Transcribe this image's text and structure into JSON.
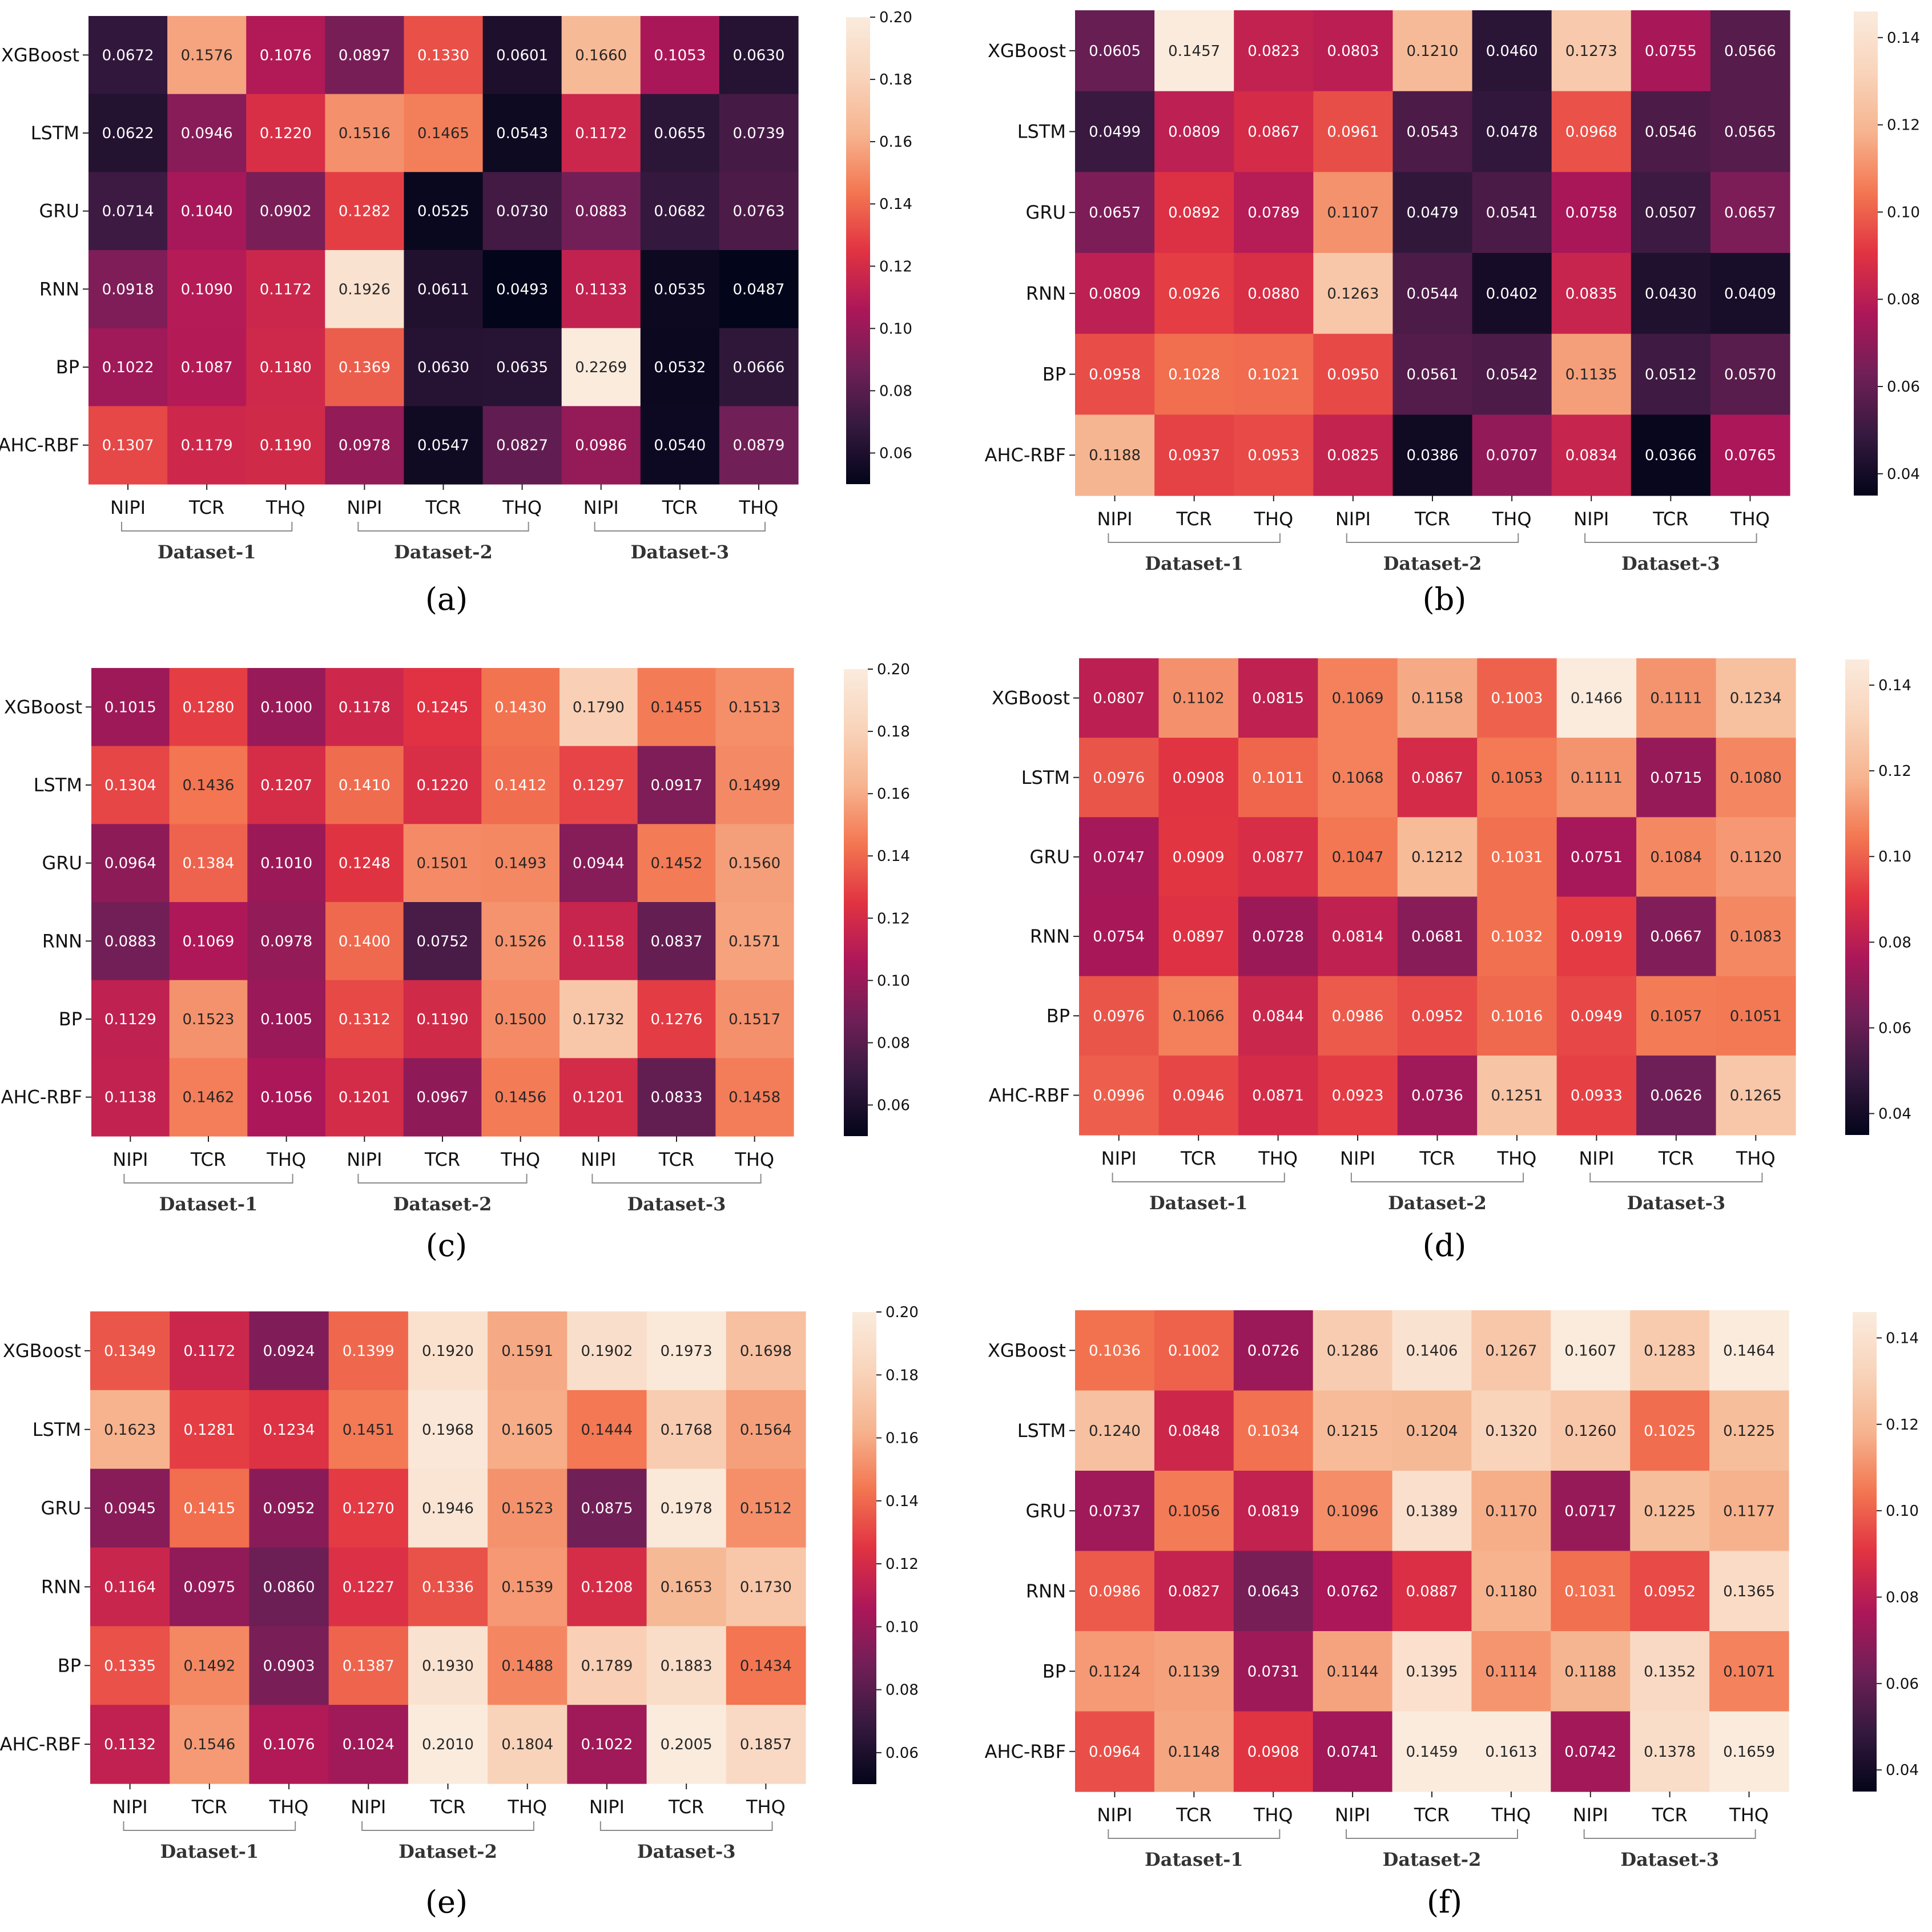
{
  "chart_data": [
    {
      "type": "heatmap",
      "panel_label": "(a)",
      "rows": [
        "XGBoost",
        "LSTM",
        "GRU",
        "RNN",
        "BP",
        "AHC-RBF"
      ],
      "columns": [
        "NIPI",
        "TCR",
        "THQ",
        "NIPI",
        "TCR",
        "THQ",
        "NIPI",
        "TCR",
        "THQ"
      ],
      "groups": [
        "Dataset-1",
        "Dataset-2",
        "Dataset-3"
      ],
      "values": [
        [
          "0.0672",
          "0.1576",
          "0.1076",
          "0.0897",
          "0.1330",
          "0.0601",
          "0.1660",
          "0.1053",
          "0.0630"
        ],
        [
          "0.0622",
          "0.0946",
          "0.1220",
          "0.1516",
          "0.1465",
          "0.0543",
          "0.1172",
          "0.0655",
          "0.0739"
        ],
        [
          "0.0714",
          "0.1040",
          "0.0902",
          "0.1282",
          "0.0525",
          "0.0730",
          "0.0883",
          "0.0682",
          "0.0763"
        ],
        [
          "0.0918",
          "0.1090",
          "0.1172",
          "0.1926",
          "0.0611",
          "0.0493",
          "0.1133",
          "0.0535",
          "0.0487"
        ],
        [
          "0.1022",
          "0.1087",
          "0.1180",
          "0.1369",
          "0.0630",
          "0.0635",
          "0.2269",
          "0.0532",
          "0.0666"
        ],
        [
          "0.1307",
          "0.1179",
          "0.1190",
          "0.0978",
          "0.0547",
          "0.0827",
          "0.0986",
          "0.0540",
          "0.0879"
        ]
      ],
      "colorbar": {
        "min": 0.05,
        "max": 0.2,
        "ticks": [
          "0.06",
          "0.08",
          "0.10",
          "0.12",
          "0.14",
          "0.16",
          "0.18",
          "0.20"
        ]
      }
    },
    {
      "type": "heatmap",
      "panel_label": "(b)",
      "rows": [
        "XGBoost",
        "LSTM",
        "GRU",
        "RNN",
        "BP",
        "AHC-RBF"
      ],
      "columns": [
        "NIPI",
        "TCR",
        "THQ",
        "NIPI",
        "TCR",
        "THQ",
        "NIPI",
        "TCR",
        "THQ"
      ],
      "groups": [
        "Dataset-1",
        "Dataset-2",
        "Dataset-3"
      ],
      "values": [
        [
          "0.0605",
          "0.1457",
          "0.0823",
          "0.0803",
          "0.1210",
          "0.0460",
          "0.1273",
          "0.0755",
          "0.0566"
        ],
        [
          "0.0499",
          "0.0809",
          "0.0867",
          "0.0961",
          "0.0543",
          "0.0478",
          "0.0968",
          "0.0546",
          "0.0565"
        ],
        [
          "0.0657",
          "0.0892",
          "0.0789",
          "0.1107",
          "0.0479",
          "0.0541",
          "0.0758",
          "0.0507",
          "0.0657"
        ],
        [
          "0.0809",
          "0.0926",
          "0.0880",
          "0.1263",
          "0.0544",
          "0.0402",
          "0.0835",
          "0.0430",
          "0.0409"
        ],
        [
          "0.0958",
          "0.1028",
          "0.1021",
          "0.0950",
          "0.0561",
          "0.0542",
          "0.1135",
          "0.0512",
          "0.0570"
        ],
        [
          "0.1188",
          "0.0937",
          "0.0953",
          "0.0825",
          "0.0386",
          "0.0707",
          "0.0834",
          "0.0366",
          "0.0765"
        ]
      ],
      "colorbar": {
        "min": 0.035,
        "max": 0.146,
        "ticks": [
          "0.04",
          "0.06",
          "0.08",
          "0.10",
          "0.12",
          "0.14"
        ]
      }
    },
    {
      "type": "heatmap",
      "panel_label": "(c)",
      "rows": [
        "XGBoost",
        "LSTM",
        "GRU",
        "RNN",
        "BP",
        "AHC-RBF"
      ],
      "columns": [
        "NIPI",
        "TCR",
        "THQ",
        "NIPI",
        "TCR",
        "THQ",
        "NIPI",
        "TCR",
        "THQ"
      ],
      "groups": [
        "Dataset-1",
        "Dataset-2",
        "Dataset-3"
      ],
      "values": [
        [
          "0.1015",
          "0.1280",
          "0.1000",
          "0.1178",
          "0.1245",
          "0.1430",
          "0.1790",
          "0.1455",
          "0.1513"
        ],
        [
          "0.1304",
          "0.1436",
          "0.1207",
          "0.1410",
          "0.1220",
          "0.1412",
          "0.1297",
          "0.0917",
          "0.1499"
        ],
        [
          "0.0964",
          "0.1384",
          "0.1010",
          "0.1248",
          "0.1501",
          "0.1493",
          "0.0944",
          "0.1452",
          "0.1560"
        ],
        [
          "0.0883",
          "0.1069",
          "0.0978",
          "0.1400",
          "0.0752",
          "0.1526",
          "0.1158",
          "0.0837",
          "0.1571"
        ],
        [
          "0.1129",
          "0.1523",
          "0.1005",
          "0.1312",
          "0.1190",
          "0.1500",
          "0.1732",
          "0.1276",
          "0.1517"
        ],
        [
          "0.1138",
          "0.1462",
          "0.1056",
          "0.1201",
          "0.0967",
          "0.1456",
          "0.1201",
          "0.0833",
          "0.1458"
        ]
      ],
      "colorbar": {
        "min": 0.05,
        "max": 0.2,
        "ticks": [
          "0.06",
          "0.08",
          "0.10",
          "0.12",
          "0.14",
          "0.16",
          "0.18",
          "0.20"
        ]
      }
    },
    {
      "type": "heatmap",
      "panel_label": "(d)",
      "rows": [
        "XGBoost",
        "LSTM",
        "GRU",
        "RNN",
        "BP",
        "AHC-RBF"
      ],
      "columns": [
        "NIPI",
        "TCR",
        "THQ",
        "NIPI",
        "TCR",
        "THQ",
        "NIPI",
        "TCR",
        "THQ"
      ],
      "groups": [
        "Dataset-1",
        "Dataset-2",
        "Dataset-3"
      ],
      "values": [
        [
          "0.0807",
          "0.1102",
          "0.0815",
          "0.1069",
          "0.1158",
          "0.1003",
          "0.1466",
          "0.1111",
          "0.1234"
        ],
        [
          "0.0976",
          "0.0908",
          "0.1011",
          "0.1068",
          "0.0867",
          "0.1053",
          "0.1111",
          "0.0715",
          "0.1080"
        ],
        [
          "0.0747",
          "0.0909",
          "0.0877",
          "0.1047",
          "0.1212",
          "0.1031",
          "0.0751",
          "0.1084",
          "0.1120"
        ],
        [
          "0.0754",
          "0.0897",
          "0.0728",
          "0.0814",
          "0.0681",
          "0.1032",
          "0.0919",
          "0.0667",
          "0.1083"
        ],
        [
          "0.0976",
          "0.1066",
          "0.0844",
          "0.0986",
          "0.0952",
          "0.1016",
          "0.0949",
          "0.1057",
          "0.1051"
        ],
        [
          "0.0996",
          "0.0946",
          "0.0871",
          "0.0923",
          "0.0736",
          "0.1251",
          "0.0933",
          "0.0626",
          "0.1265"
        ]
      ],
      "colorbar": {
        "min": 0.035,
        "max": 0.146,
        "ticks": [
          "0.04",
          "0.06",
          "0.08",
          "0.10",
          "0.12",
          "0.14"
        ]
      }
    },
    {
      "type": "heatmap",
      "panel_label": "(e)",
      "rows": [
        "XGBoost",
        "LSTM",
        "GRU",
        "RNN",
        "BP",
        "AHC-RBF"
      ],
      "columns": [
        "NIPI",
        "TCR",
        "THQ",
        "NIPI",
        "TCR",
        "THQ",
        "NIPI",
        "TCR",
        "THQ"
      ],
      "groups": [
        "Dataset-1",
        "Dataset-2",
        "Dataset-3"
      ],
      "values": [
        [
          "0.1349",
          "0.1172",
          "0.0924",
          "0.1399",
          "0.1920",
          "0.1591",
          "0.1902",
          "0.1973",
          "0.1698"
        ],
        [
          "0.1623",
          "0.1281",
          "0.1234",
          "0.1451",
          "0.1968",
          "0.1605",
          "0.1444",
          "0.1768",
          "0.1564"
        ],
        [
          "0.0945",
          "0.1415",
          "0.0952",
          "0.1270",
          "0.1946",
          "0.1523",
          "0.0875",
          "0.1978",
          "0.1512"
        ],
        [
          "0.1164",
          "0.0975",
          "0.0860",
          "0.1227",
          "0.1336",
          "0.1539",
          "0.1208",
          "0.1653",
          "0.1730"
        ],
        [
          "0.1335",
          "0.1492",
          "0.0903",
          "0.1387",
          "0.1930",
          "0.1488",
          "0.1789",
          "0.1883",
          "0.1434"
        ],
        [
          "0.1132",
          "0.1546",
          "0.1076",
          "0.1024",
          "0.2010",
          "0.1804",
          "0.1022",
          "0.2005",
          "0.1857"
        ]
      ],
      "colorbar": {
        "min": 0.05,
        "max": 0.2,
        "ticks": [
          "0.06",
          "0.08",
          "0.10",
          "0.12",
          "0.14",
          "0.16",
          "0.18",
          "0.20"
        ]
      }
    },
    {
      "type": "heatmap",
      "panel_label": "(f)",
      "rows": [
        "XGBoost",
        "LSTM",
        "GRU",
        "RNN",
        "BP",
        "AHC-RBF"
      ],
      "columns": [
        "NIPI",
        "TCR",
        "THQ",
        "NIPI",
        "TCR",
        "THQ",
        "NIPI",
        "TCR",
        "THQ"
      ],
      "groups": [
        "Dataset-1",
        "Dataset-2",
        "Dataset-3"
      ],
      "values": [
        [
          "0.1036",
          "0.1002",
          "0.0726",
          "0.1286",
          "0.1406",
          "0.1267",
          "0.1607",
          "0.1283",
          "0.1464"
        ],
        [
          "0.1240",
          "0.0848",
          "0.1034",
          "0.1215",
          "0.1204",
          "0.1320",
          "0.1260",
          "0.1025",
          "0.1225"
        ],
        [
          "0.0737",
          "0.1056",
          "0.0819",
          "0.1096",
          "0.1389",
          "0.1170",
          "0.0717",
          "0.1225",
          "0.1177"
        ],
        [
          "0.0986",
          "0.0827",
          "0.0643",
          "0.0762",
          "0.0887",
          "0.1180",
          "0.1031",
          "0.0952",
          "0.1365"
        ],
        [
          "0.1124",
          "0.1139",
          "0.0731",
          "0.1144",
          "0.1395",
          "0.1114",
          "0.1188",
          "0.1352",
          "0.1071"
        ],
        [
          "0.0964",
          "0.1148",
          "0.0908",
          "0.0741",
          "0.1459",
          "0.1613",
          "0.0742",
          "0.1378",
          "0.1659"
        ]
      ],
      "colorbar": {
        "min": 0.035,
        "max": 0.146,
        "ticks": [
          "0.04",
          "0.06",
          "0.08",
          "0.10",
          "0.12",
          "0.14"
        ]
      }
    }
  ]
}
